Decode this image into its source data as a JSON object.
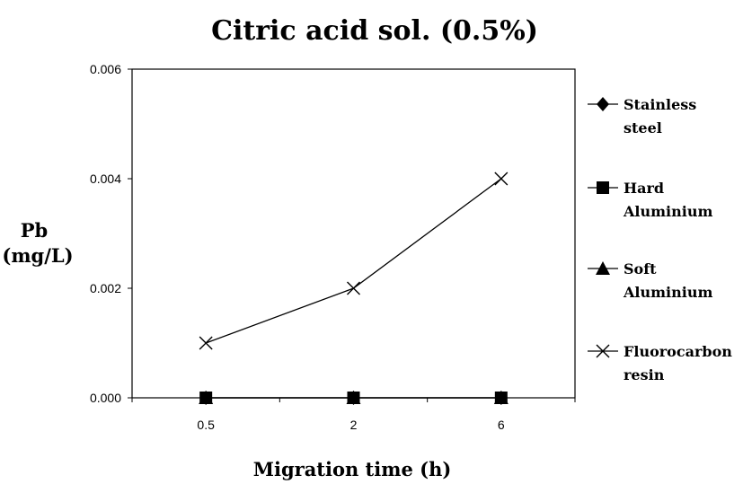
{
  "chart_data": {
    "type": "line",
    "title": "Citric acid sol. (0.5%)",
    "xlabel": "Migration time (h)",
    "ylabel_line1": "Pb",
    "ylabel_line2": "(mg/L)",
    "categories": [
      "0.5",
      "2",
      "6"
    ],
    "y_ticks": [
      "0.000",
      "0.002",
      "0.004",
      "0.006"
    ],
    "ylim": [
      0,
      0.006
    ],
    "grid": false,
    "legend_position": "right",
    "series": [
      {
        "name_line1": "Stainless",
        "name_line2": "steel",
        "marker": "diamond",
        "values": [
          0,
          0,
          0
        ]
      },
      {
        "name_line1": "Hard",
        "name_line2": "Aluminium",
        "marker": "square",
        "values": [
          0,
          0,
          0
        ]
      },
      {
        "name_line1": "Soft",
        "name_line2": "Aluminium",
        "marker": "triangle",
        "values": [
          0,
          0,
          0
        ]
      },
      {
        "name_line1": "Fluorocarbon",
        "name_line2": "resin",
        "marker": "cross",
        "values": [
          0.001,
          0.002,
          0.004
        ]
      }
    ]
  }
}
